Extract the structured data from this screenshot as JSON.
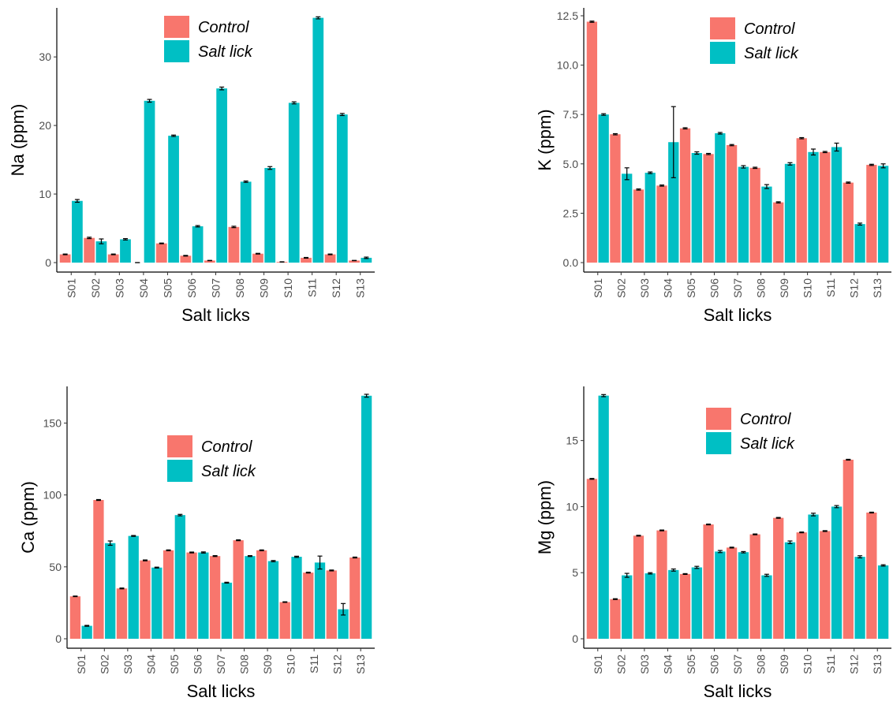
{
  "colors": {
    "control": "#F8766D",
    "salt_lick": "#00BFC4",
    "axis": "#000000",
    "tick_text": "#4d4d4d"
  },
  "chart_data": [
    {
      "id": "na",
      "type": "bar",
      "xlabel": "Salt licks",
      "ylabel": "Na (ppm)",
      "categories": [
        "S01",
        "S02",
        "S03",
        "S04",
        "S05",
        "S06",
        "S07",
        "S08",
        "S09",
        "S10",
        "S11",
        "S12",
        "S13"
      ],
      "ylim": [
        0,
        36
      ],
      "yticks": [
        0,
        10,
        20,
        30
      ],
      "legend_position": "top-center",
      "series": [
        {
          "name": "Control",
          "color": "#F8766D",
          "values": [
            1.2,
            3.6,
            1.2,
            0.0,
            2.8,
            1.0,
            0.3,
            5.2,
            1.3,
            0.1,
            0.7,
            1.2,
            0.3
          ],
          "errors": [
            0.05,
            0.1,
            0.05,
            0,
            0.05,
            0.05,
            0.02,
            0.1,
            0.05,
            0.02,
            0.05,
            0.05,
            0.02
          ]
        },
        {
          "name": "Salt lick",
          "color": "#00BFC4",
          "values": [
            9.0,
            3.1,
            3.4,
            23.6,
            18.5,
            5.3,
            25.4,
            11.8,
            13.8,
            23.3,
            35.7,
            21.6,
            0.7
          ],
          "errors": [
            0.2,
            0.35,
            0.1,
            0.2,
            0.1,
            0.1,
            0.2,
            0.1,
            0.2,
            0.15,
            0.15,
            0.15,
            0.1
          ]
        }
      ]
    },
    {
      "id": "k",
      "type": "bar",
      "xlabel": "Salt licks",
      "ylabel": "K (ppm)",
      "categories": [
        "S01",
        "S02",
        "S03",
        "S04",
        "S05",
        "S06",
        "S07",
        "S08",
        "S09",
        "S10",
        "S11",
        "S12",
        "S13"
      ],
      "ylim": [
        0,
        12.5
      ],
      "yticks": [
        0.0,
        2.5,
        5.0,
        7.5,
        10.0,
        12.5
      ],
      "ytick_labels": [
        "0.0",
        "2.5",
        "5.0",
        "7.5",
        "10.0",
        "12.5"
      ],
      "legend_position": "top-center",
      "series": [
        {
          "name": "Control",
          "color": "#F8766D",
          "values": [
            12.2,
            6.5,
            3.7,
            3.9,
            6.8,
            5.5,
            5.95,
            4.8,
            3.05,
            6.3,
            5.6,
            4.05,
            4.95
          ],
          "errors": [
            0.03,
            0.03,
            0.03,
            0.03,
            0.03,
            0.03,
            0.03,
            0.03,
            0.03,
            0.03,
            0.03,
            0.03,
            0.03
          ]
        },
        {
          "name": "Salt lick",
          "color": "#00BFC4",
          "values": [
            7.5,
            4.5,
            4.55,
            6.1,
            5.55,
            6.55,
            4.85,
            3.85,
            5.0,
            5.6,
            5.85,
            1.95,
            4.9
          ],
          "errors": [
            0.04,
            0.3,
            0.04,
            1.8,
            0.06,
            0.04,
            0.06,
            0.1,
            0.06,
            0.15,
            0.2,
            0.05,
            0.1
          ]
        }
      ]
    },
    {
      "id": "ca",
      "type": "bar",
      "xlabel": "Salt licks",
      "ylabel": "Ca (ppm)",
      "categories": [
        "S01",
        "S02",
        "S03",
        "S04",
        "S05",
        "S06",
        "S07",
        "S08",
        "S09",
        "S10",
        "S11",
        "S12",
        "S13"
      ],
      "ylim": [
        0,
        170
      ],
      "yticks": [
        0,
        50,
        100,
        150
      ],
      "legend_position": "center",
      "series": [
        {
          "name": "Control",
          "color": "#F8766D",
          "values": [
            29.5,
            96.5,
            35.0,
            54.5,
            61.5,
            60.0,
            57.5,
            68.5,
            61.5,
            25.5,
            46.0,
            47.5,
            56.5
          ],
          "errors": [
            0.2,
            0.3,
            0.3,
            0.3,
            0.3,
            0.3,
            0.3,
            0.3,
            0.3,
            0.2,
            0.3,
            0.3,
            0.3
          ]
        },
        {
          "name": "Salt lick",
          "color": "#00BFC4",
          "values": [
            9.0,
            66.5,
            71.5,
            49.5,
            86.0,
            60.0,
            39.0,
            57.5,
            54.0,
            57.0,
            53.0,
            20.5,
            169.0
          ],
          "errors": [
            0.3,
            1.5,
            0.3,
            0.3,
            0.5,
            0.4,
            0.3,
            0.3,
            0.4,
            0.4,
            4.5,
            4.0,
            1.0
          ]
        }
      ]
    },
    {
      "id": "mg",
      "type": "bar",
      "xlabel": "Salt licks",
      "ylabel": "Mg (ppm)",
      "categories": [
        "S01",
        "S02",
        "S03",
        "S04",
        "S05",
        "S06",
        "S07",
        "S08",
        "S09",
        "S10",
        "S11",
        "S12",
        "S13"
      ],
      "ylim": [
        0,
        18.5
      ],
      "yticks": [
        0,
        5,
        10,
        15
      ],
      "legend_position": "top-center",
      "series": [
        {
          "name": "Control",
          "color": "#F8766D",
          "values": [
            12.1,
            3.0,
            7.8,
            8.2,
            4.9,
            8.65,
            6.9,
            7.9,
            9.15,
            8.05,
            8.15,
            13.55,
            9.55
          ],
          "errors": [
            0.03,
            0.03,
            0.03,
            0.03,
            0.03,
            0.03,
            0.03,
            0.03,
            0.03,
            0.03,
            0.03,
            0.03,
            0.03
          ]
        },
        {
          "name": "Salt lick",
          "color": "#00BFC4",
          "values": [
            18.4,
            4.8,
            4.95,
            5.2,
            5.4,
            6.6,
            6.55,
            4.8,
            7.3,
            9.4,
            10.0,
            6.2,
            5.55
          ],
          "errors": [
            0.08,
            0.15,
            0.05,
            0.08,
            0.08,
            0.08,
            0.05,
            0.08,
            0.1,
            0.1,
            0.08,
            0.08,
            0.05
          ]
        }
      ]
    }
  ]
}
